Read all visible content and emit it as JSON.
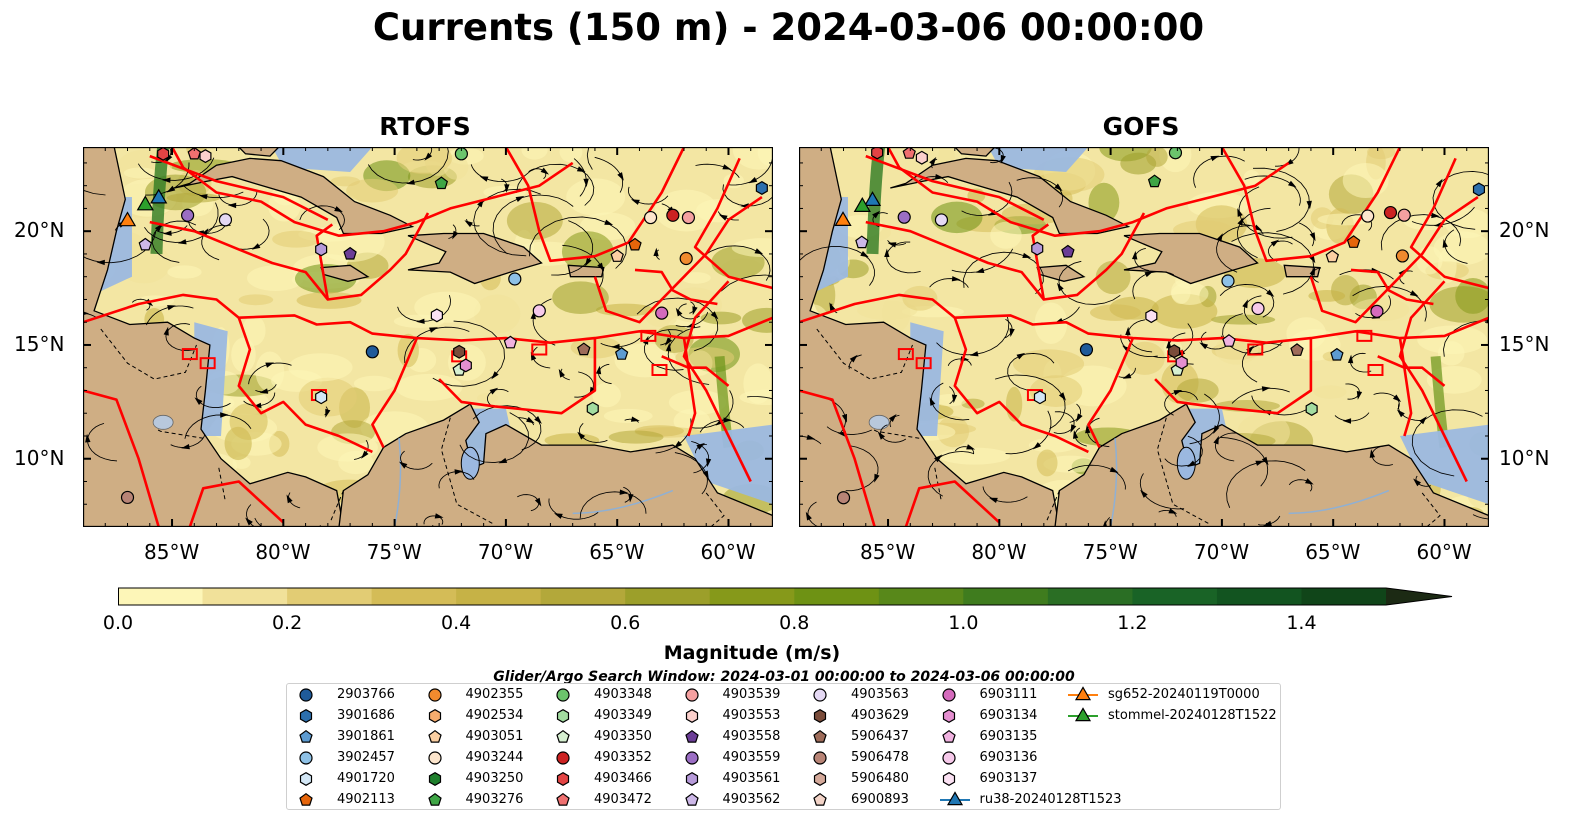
{
  "title": "Currents (150 m) - 2024-03-06 00:00:00",
  "panels": [
    {
      "title": "RTOFS",
      "variant": 0
    },
    {
      "title": "GOFS",
      "variant": 1
    }
  ],
  "axes": {
    "lon_ticks": [
      "85°W",
      "80°W",
      "75°W",
      "70°W",
      "65°W",
      "60°W"
    ],
    "lat_ticks": [
      "20°N",
      "15°N",
      "10°N"
    ]
  },
  "colorbar": {
    "label": "Magnitude (m/s)",
    "ticks": [
      "0.0",
      "0.2",
      "0.4",
      "0.6",
      "0.8",
      "1.0",
      "1.2",
      "1.4"
    ],
    "colors": [
      "#fdf6b8",
      "#f1e19a",
      "#e2cc74",
      "#d4bc57",
      "#c6b246",
      "#b3a83a",
      "#9c9f2a",
      "#86991a",
      "#6e9214",
      "#58881a",
      "#3f7c1e",
      "#2a6e24",
      "#196326",
      "#125420",
      "#104519",
      "#0f3415",
      "#1c2a14"
    ]
  },
  "colors": {
    "ocean": "#9bb8e0",
    "land": "#cfae84",
    "eez": "#ff0000",
    "streamline": "#000000"
  },
  "legend": {
    "title": "Glider/Argo Search Window: 2024-03-01 00:00:00 to 2024-03-06 00:00:00",
    "items": [
      {
        "label": "2903766",
        "marker": "circle",
        "color": "#1f5b9a"
      },
      {
        "label": "3901686",
        "marker": "hexagon",
        "color": "#2c6fad"
      },
      {
        "label": "3901861",
        "marker": "pentagon",
        "color": "#5d9bd1"
      },
      {
        "label": "3902457",
        "marker": "circle",
        "color": "#8ec1e6"
      },
      {
        "label": "4901720",
        "marker": "hexagon",
        "color": "#d3e7f6"
      },
      {
        "label": "4902113",
        "marker": "pentagon",
        "color": "#e6650b"
      },
      {
        "label": "4902355",
        "marker": "circle",
        "color": "#f08a2e"
      },
      {
        "label": "4902534",
        "marker": "hexagon",
        "color": "#f7ad6e"
      },
      {
        "label": "4903051",
        "marker": "pentagon",
        "color": "#fbcfa2"
      },
      {
        "label": "4903244",
        "marker": "circle",
        "color": "#fde6cd"
      },
      {
        "label": "4903250",
        "marker": "hexagon",
        "color": "#1e7f2c"
      },
      {
        "label": "4903276",
        "marker": "pentagon",
        "color": "#3ea545"
      },
      {
        "label": "4903348",
        "marker": "circle",
        "color": "#6cc46c"
      },
      {
        "label": "4903349",
        "marker": "hexagon",
        "color": "#a3dca0"
      },
      {
        "label": "4903350",
        "marker": "pentagon",
        "color": "#d6f0d1"
      },
      {
        "label": "4903352",
        "marker": "circle",
        "color": "#cc2222"
      },
      {
        "label": "4903466",
        "marker": "hexagon",
        "color": "#e34444"
      },
      {
        "label": "4903472",
        "marker": "pentagon",
        "color": "#ef7070"
      },
      {
        "label": "4903539",
        "marker": "circle",
        "color": "#f5a0a0"
      },
      {
        "label": "4903553",
        "marker": "hexagon",
        "color": "#fbd0cc"
      },
      {
        "label": "4903558",
        "marker": "pentagon",
        "color": "#6b3d96"
      },
      {
        "label": "4903559",
        "marker": "circle",
        "color": "#9b6ec4"
      },
      {
        "label": "4903561",
        "marker": "hexagon",
        "color": "#b69ad9"
      },
      {
        "label": "4903562",
        "marker": "pentagon",
        "color": "#cdb8e8"
      },
      {
        "label": "4903563",
        "marker": "circle",
        "color": "#e5d9f4"
      },
      {
        "label": "4903629",
        "marker": "hexagon",
        "color": "#7a4c3a"
      },
      {
        "label": "5906437",
        "marker": "pentagon",
        "color": "#9e6c5a"
      },
      {
        "label": "5906478",
        "marker": "circle",
        "color": "#b88476"
      },
      {
        "label": "5906480",
        "marker": "hexagon",
        "color": "#d4a99a"
      },
      {
        "label": "6900893",
        "marker": "pentagon",
        "color": "#f2d3c7"
      },
      {
        "label": "6903111",
        "marker": "circle",
        "color": "#d56bbd"
      },
      {
        "label": "6903134",
        "marker": "hexagon",
        "color": "#e58fd0"
      },
      {
        "label": "6903135",
        "marker": "pentagon",
        "color": "#f0b2e0"
      },
      {
        "label": "6903136",
        "marker": "circle",
        "color": "#f6c9ea"
      },
      {
        "label": "6903137",
        "marker": "hexagon",
        "color": "#fbe1f3"
      },
      {
        "label": "ru38-20240128T1523",
        "marker": "triangle-line",
        "color": "#1f77b4"
      },
      {
        "label": "sg652-20240119T0000",
        "marker": "triangle-line",
        "color": "#ff7f0e"
      },
      {
        "label": "stommel-20240128T1522",
        "marker": "triangle-line",
        "color": "#2ca02c"
      }
    ]
  },
  "markers_on_map": [
    {
      "id": "2903766",
      "lon": -76.0,
      "lat": 14.7,
      "marker": "circle",
      "color": "#1f5b9a"
    },
    {
      "id": "3901686",
      "lon": -58.5,
      "lat": 21.9,
      "marker": "hexagon",
      "color": "#2c6fad"
    },
    {
      "id": "3901861",
      "lon": -64.8,
      "lat": 14.6,
      "marker": "pentagon",
      "color": "#5d9bd1"
    },
    {
      "id": "3902457",
      "lon": -69.6,
      "lat": 17.9,
      "marker": "circle",
      "color": "#8ec1e6"
    },
    {
      "id": "4901720",
      "lon": -78.3,
      "lat": 12.7,
      "marker": "hexagon",
      "color": "#d3e7f6"
    },
    {
      "id": "4902113",
      "lon": -64.2,
      "lat": 19.4,
      "marker": "pentagon",
      "color": "#e6650b"
    },
    {
      "id": "4902355",
      "lon": -61.9,
      "lat": 18.8,
      "marker": "circle",
      "color": "#f08a2e"
    },
    {
      "id": "4903051",
      "lon": -65.0,
      "lat": 18.9,
      "marker": "pentagon",
      "color": "#fbcfa2"
    },
    {
      "id": "4903244",
      "lon": -63.5,
      "lat": 20.6,
      "marker": "circle",
      "color": "#fde6cd"
    },
    {
      "id": "4903276",
      "lon": -72.9,
      "lat": 22.1,
      "marker": "pentagon",
      "color": "#3ea545"
    },
    {
      "id": "4903348",
      "lon": -72.0,
      "lat": 23.4,
      "marker": "circle",
      "color": "#6cc46c"
    },
    {
      "id": "4903349",
      "lon": -66.1,
      "lat": 12.2,
      "marker": "hexagon",
      "color": "#a3dca0"
    },
    {
      "id": "4903350",
      "lon": -72.1,
      "lat": 13.9,
      "marker": "pentagon",
      "color": "#d6f0d1"
    },
    {
      "id": "4903352",
      "lon": -62.5,
      "lat": 20.7,
      "marker": "circle",
      "color": "#cc2222"
    },
    {
      "id": "4903466",
      "lon": -85.4,
      "lat": 23.4,
      "marker": "hexagon",
      "color": "#e34444"
    },
    {
      "id": "4903472",
      "lon": -84.0,
      "lat": 23.4,
      "marker": "pentagon",
      "color": "#ef7070"
    },
    {
      "id": "4903539",
      "lon": -61.8,
      "lat": 20.6,
      "marker": "circle",
      "color": "#f5a0a0"
    },
    {
      "id": "4903553",
      "lon": -83.5,
      "lat": 23.3,
      "marker": "hexagon",
      "color": "#fbd0cc"
    },
    {
      "id": "4903558",
      "lon": -77.0,
      "lat": 19.0,
      "marker": "pentagon",
      "color": "#6b3d96"
    },
    {
      "id": "4903559",
      "lon": -84.3,
      "lat": 20.7,
      "marker": "circle",
      "color": "#9b6ec4"
    },
    {
      "id": "4903561",
      "lon": -78.3,
      "lat": 19.2,
      "marker": "hexagon",
      "color": "#b69ad9"
    },
    {
      "id": "4903562",
      "lon": -86.2,
      "lat": 19.4,
      "marker": "pentagon",
      "color": "#cdb8e8"
    },
    {
      "id": "4903563",
      "lon": -82.6,
      "lat": 20.5,
      "marker": "circle",
      "color": "#e5d9f4"
    },
    {
      "id": "4903629",
      "lon": -72.1,
      "lat": 14.7,
      "marker": "hexagon",
      "color": "#7a4c3a"
    },
    {
      "id": "5906437",
      "lon": -66.5,
      "lat": 14.8,
      "marker": "pentagon",
      "color": "#9e6c5a"
    },
    {
      "id": "5906478",
      "lon": -87.0,
      "lat": 8.3,
      "marker": "circle",
      "color": "#b88476"
    },
    {
      "id": "6903111",
      "lon": -63.0,
      "lat": 16.4,
      "marker": "circle",
      "color": "#d56bbd"
    },
    {
      "id": "6903134",
      "lon": -71.8,
      "lat": 14.1,
      "marker": "hexagon",
      "color": "#e58fd0"
    },
    {
      "id": "6903135",
      "lon": -69.8,
      "lat": 15.1,
      "marker": "pentagon",
      "color": "#f0b2e0"
    },
    {
      "id": "6903136",
      "lon": -68.5,
      "lat": 16.5,
      "marker": "circle",
      "color": "#f6c9ea"
    },
    {
      "id": "6903137",
      "lon": -73.1,
      "lat": 16.3,
      "marker": "hexagon",
      "color": "#fbe1f3"
    },
    {
      "id": "ru38-20240128T1523",
      "lon": -85.6,
      "lat": 21.5,
      "marker": "triangle",
      "color": "#1f77b4"
    },
    {
      "id": "sg652-20240119T0000",
      "lon": -87.0,
      "lat": 20.5,
      "marker": "triangle",
      "color": "#ff7f0e"
    },
    {
      "id": "stommel-20240128T1522",
      "lon": -86.2,
      "lat": 21.2,
      "marker": "triangle",
      "color": "#2ca02c"
    }
  ]
}
